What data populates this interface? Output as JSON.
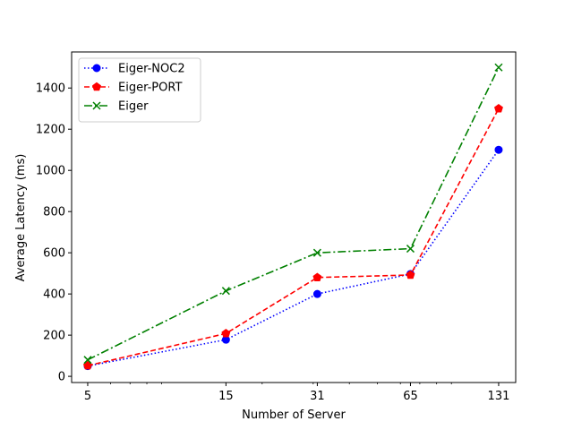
{
  "chart_data": {
    "type": "line",
    "xlabel": "Number of Server",
    "ylabel": "Average Latency (ms)",
    "xscale": "log",
    "xlim": [
      4.4,
      150
    ],
    "ylim": [
      -30,
      1575
    ],
    "x": [
      5,
      15,
      31,
      65,
      131
    ],
    "xticks": [
      "5",
      "15",
      "31",
      "65",
      "131"
    ],
    "yticks": [
      0,
      200,
      400,
      600,
      800,
      1000,
      1200,
      1400
    ],
    "grid": false,
    "legend": "top-left",
    "series": [
      {
        "name": "Eiger-NOC2",
        "values": [
          50,
          178,
          400,
          497,
          1100
        ],
        "color": "#0000ff",
        "dash": "dotted",
        "marker": "circle"
      },
      {
        "name": "Eiger-PORT",
        "values": [
          52,
          208,
          480,
          492,
          1300
        ],
        "color": "#ff0000",
        "dash": "dashed",
        "marker": "pentagon"
      },
      {
        "name": "Eiger",
        "values": [
          80,
          415,
          600,
          620,
          1500
        ],
        "color": "#008000",
        "dash": "dashdot",
        "marker": "x"
      }
    ]
  }
}
